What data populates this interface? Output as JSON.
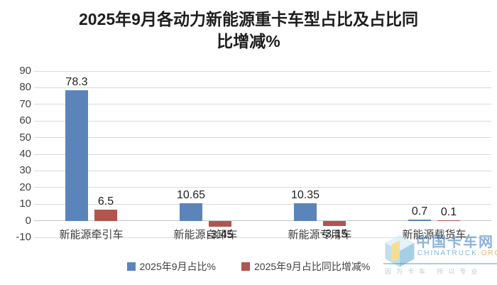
{
  "title": {
    "line1": "2025年9月各动力新能源重卡车型占比及占比同",
    "line2": "比增减%"
  },
  "chart_data": {
    "type": "bar",
    "title": "2025年9月各动力新能源重卡车型占比及占比同比增减%",
    "categories": [
      "新能源牵引车",
      "新能源自卸车",
      "新能源专用车",
      "新能源载货车"
    ],
    "series": [
      {
        "name": "2025年9月占比%",
        "color": "#5b84bb",
        "values": [
          78.3,
          10.65,
          10.35,
          0.7
        ]
      },
      {
        "name": "2025年9月占比同比增减%",
        "color": "#b05550",
        "values": [
          6.5,
          -3.45,
          -3.15,
          0.1
        ]
      }
    ],
    "ylim": [
      -10,
      90
    ],
    "yticks": [
      90,
      80,
      70,
      60,
      50,
      40,
      30,
      20,
      10,
      0,
      -10
    ],
    "grid": true,
    "legend_position": "bottom",
    "gridline_color": "#dadada",
    "zero_line_color": "#c6c6c6"
  },
  "watermark": {
    "brand": "中国卡车网",
    "domain_main": "CHINATRUCK",
    "domain_tld": ".ORG",
    "slogan": "因为卡车 所以专业"
  }
}
